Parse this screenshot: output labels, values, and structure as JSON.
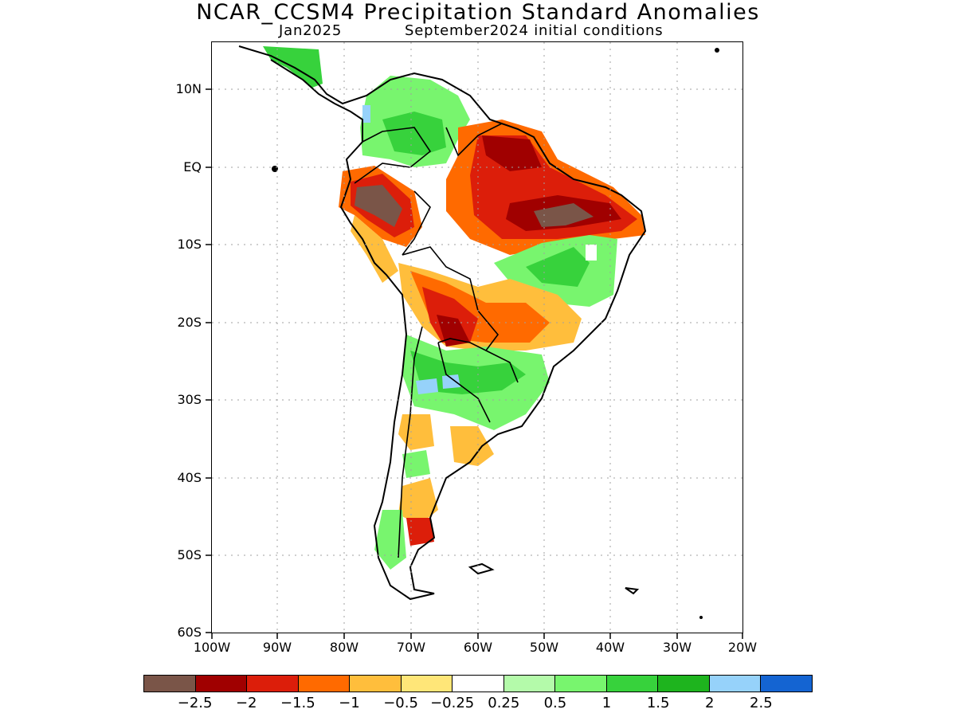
{
  "title": "NCAR_CCSM4 Precipitation Standard Anomalies",
  "subtitle_left": "Jan2025",
  "subtitle_right": "September2024 initial conditions",
  "map": {
    "lon_range": [
      -100,
      -20
    ],
    "lat_range": [
      -60,
      15
    ],
    "grid": "dotted",
    "y_ticks": [
      "10N",
      "EQ",
      "10S",
      "20S",
      "30S",
      "40S",
      "50S",
      "60S"
    ],
    "x_ticks": [
      "100W",
      "90W",
      "80W",
      "70W",
      "60W",
      "50W",
      "40W",
      "30W",
      "20W"
    ]
  },
  "colorbar": {
    "colors": [
      "#7a5548",
      "#a00000",
      "#dc1e0a",
      "#ff6a00",
      "#ffbe3c",
      "#ffe678",
      "#ffffff",
      "#b4faaa",
      "#78f56e",
      "#37d23c",
      "#1eb41e",
      "#96d2fa",
      "#1464d2"
    ],
    "labels": [
      "-2.5",
      "-2",
      "-1.5",
      "-1",
      "-0.5",
      "-0.25",
      "0.25",
      "0.5",
      "1",
      "1.5",
      "2",
      "2.5"
    ]
  }
}
